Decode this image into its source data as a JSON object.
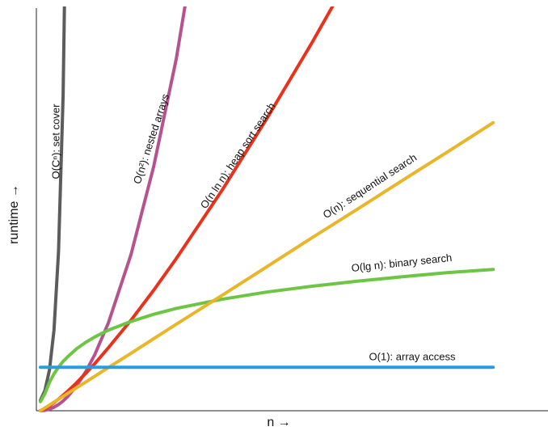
{
  "chart_data": {
    "type": "line",
    "xlabel": "n →",
    "ylabel": "runtime →",
    "xlim": [
      -0.9,
      112.1
    ],
    "ylim": [
      0,
      88.9
    ],
    "x": [
      0,
      1,
      2,
      3,
      4,
      5,
      6,
      8,
      10,
      12,
      15,
      20,
      25,
      30,
      40,
      50,
      60,
      70,
      80,
      90,
      100
    ],
    "series": [
      {
        "name": "O(Cⁿ): set cover",
        "color": "#5c5c5c",
        "values": [
          2.3,
          4.5,
          9.0,
          17.8,
          35.1,
          69.7,
          138,
          null,
          null,
          null,
          null,
          null,
          null,
          null,
          null,
          null,
          null,
          null,
          null,
          null,
          null
        ]
      },
      {
        "name": "O(n²): nested arrays",
        "color": "#b5528f",
        "values": [
          0,
          0.09,
          0.35,
          0.78,
          1.38,
          2.16,
          3.11,
          5.52,
          8.63,
          12.4,
          19.4,
          34.5,
          53.9,
          77.7,
          138,
          null,
          null,
          null,
          null,
          null,
          null
        ]
      },
      {
        "name": "O(n ln n): heap sort search",
        "color": "#e8321b",
        "values": [
          0,
          0.44,
          1.06,
          1.78,
          2.57,
          3.42,
          4.31,
          6.22,
          8.27,
          10.4,
          13.9,
          20.0,
          26.6,
          33.6,
          48.5,
          64.5,
          81.3,
          99.0,
          null,
          null,
          null
        ]
      },
      {
        "name": "O(lg n): binary search",
        "color": "#6cc644",
        "values": [
          2,
          3.79,
          6.28,
          8.14,
          9.63,
          10.9,
          11.9,
          13.7,
          15.1,
          16.3,
          17.8,
          19.7,
          21.3,
          22.6,
          24.6,
          26.2,
          27.5,
          28.6,
          29.6,
          30.5,
          31.2
        ]
      },
      {
        "name": "O(n): sequential search",
        "color": "#e9b62a",
        "values": [
          0,
          0.64,
          1.27,
          1.91,
          2.54,
          3.18,
          3.82,
          5.09,
          6.36,
          7.63,
          9.54,
          12.7,
          15.9,
          19.1,
          25.4,
          31.8,
          38.2,
          44.5,
          50.9,
          57.2,
          63.6
        ]
      },
      {
        "name": "O(1): array access",
        "color": "#2a9de0",
        "values": [
          9.6,
          9.6,
          9.6,
          9.6,
          9.6,
          9.6,
          9.6,
          9.6,
          9.6,
          9.6,
          9.6,
          9.6,
          9.6,
          9.6,
          9.6,
          9.6,
          9.6,
          9.6,
          9.6,
          9.6,
          9.6
        ]
      }
    ]
  }
}
